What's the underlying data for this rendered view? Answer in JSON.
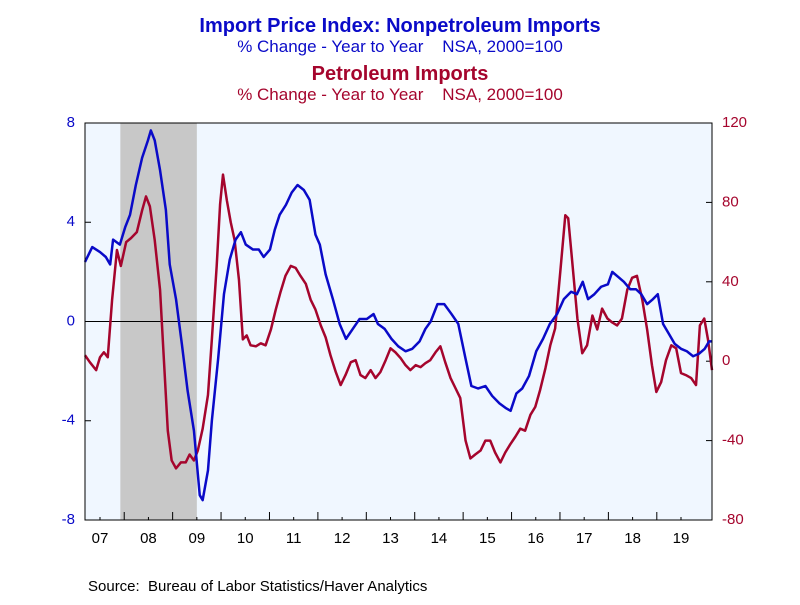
{
  "chart_data": {
    "type": "line",
    "source": "Source:  Bureau of Labor Statistics/Haver Analytics",
    "xlim": [
      2007.19,
      2020.14
    ],
    "xticks": [
      {
        "value": 2007.5,
        "label": "07"
      },
      {
        "value": 2008.5,
        "label": "08"
      },
      {
        "value": 2009.5,
        "label": "09"
      },
      {
        "value": 2010.5,
        "label": "10"
      },
      {
        "value": 2011.5,
        "label": "11"
      },
      {
        "value": 2012.5,
        "label": "12"
      },
      {
        "value": 2013.5,
        "label": "13"
      },
      {
        "value": 2014.5,
        "label": "14"
      },
      {
        "value": 2015.5,
        "label": "15"
      },
      {
        "value": 2016.5,
        "label": "16"
      },
      {
        "value": 2017.5,
        "label": "17"
      },
      {
        "value": 2018.5,
        "label": "18"
      },
      {
        "value": 2019.5,
        "label": "19"
      }
    ],
    "ylim": [
      -8,
      8
    ],
    "yticks": [
      -8,
      -4,
      0,
      4,
      8
    ],
    "y2lim": [
      -80,
      120
    ],
    "y2ticks": [
      -80,
      -40,
      0,
      40,
      80,
      120
    ],
    "recession": [
      2007.92,
      2009.5
    ],
    "series": [
      {
        "title": "Import Price Index: Nonpetroleum Imports",
        "subtitle": "% Change - Year to Year    NSA, 2000=100",
        "color": "#0a0ac8",
        "axis": "y",
        "x": [
          2007.19,
          2007.34,
          2007.5,
          2007.62,
          2007.71,
          2007.77,
          2007.91,
          2008.02,
          2008.12,
          2008.24,
          2008.37,
          2008.49,
          2008.55,
          2008.63,
          2008.74,
          2008.86,
          2008.94,
          2009.07,
          2009.19,
          2009.31,
          2009.44,
          2009.56,
          2009.62,
          2009.73,
          2009.81,
          2009.94,
          2010.06,
          2010.18,
          2010.3,
          2010.41,
          2010.51,
          2010.66,
          2010.78,
          2010.88,
          2011.01,
          2011.11,
          2011.21,
          2011.34,
          2011.46,
          2011.58,
          2011.71,
          2011.83,
          2011.95,
          2012.04,
          2012.16,
          2012.31,
          2012.45,
          2012.58,
          2012.72,
          2012.86,
          2013.01,
          2013.15,
          2013.24,
          2013.38,
          2013.52,
          2013.66,
          2013.81,
          2013.95,
          2014.1,
          2014.22,
          2014.33,
          2014.47,
          2014.61,
          2014.76,
          2014.9,
          2015.05,
          2015.17,
          2015.31,
          2015.46,
          2015.6,
          2015.75,
          2015.89,
          2015.98,
          2016.1,
          2016.22,
          2016.36,
          2016.51,
          2016.65,
          2016.79,
          2016.94,
          2017.08,
          2017.23,
          2017.35,
          2017.47,
          2017.58,
          2017.71,
          2017.85,
          2017.99,
          2018.08,
          2018.2,
          2018.32,
          2018.45,
          2018.57,
          2018.68,
          2018.8,
          2018.92,
          2019.02,
          2019.13,
          2019.25,
          2019.37,
          2019.5,
          2019.62,
          2019.75,
          2019.87,
          2019.99,
          2020.08,
          2020.14
        ],
        "values": [
          2.4,
          3.0,
          2.8,
          2.6,
          2.3,
          3.3,
          3.1,
          3.8,
          4.3,
          5.5,
          6.6,
          7.3,
          7.7,
          7.3,
          6.1,
          4.5,
          2.3,
          0.9,
          -0.9,
          -2.8,
          -4.4,
          -7.0,
          -7.2,
          -6.0,
          -4.0,
          -1.5,
          1.1,
          2.5,
          3.3,
          3.6,
          3.1,
          2.9,
          2.9,
          2.6,
          2.9,
          3.7,
          4.3,
          4.7,
          5.2,
          5.5,
          5.3,
          4.9,
          3.5,
          3.1,
          1.9,
          0.9,
          -0.1,
          -0.7,
          -0.3,
          0.1,
          0.1,
          0.3,
          -0.1,
          -0.3,
          -0.7,
          -1.0,
          -1.2,
          -1.1,
          -0.8,
          -0.3,
          0.0,
          0.7,
          0.7,
          0.3,
          -0.1,
          -1.5,
          -2.6,
          -2.7,
          -2.6,
          -3.0,
          -3.3,
          -3.5,
          -3.6,
          -2.9,
          -2.7,
          -2.2,
          -1.2,
          -0.7,
          -0.1,
          0.3,
          0.9,
          1.2,
          1.1,
          1.6,
          0.9,
          1.1,
          1.4,
          1.5,
          2.0,
          1.8,
          1.6,
          1.3,
          1.3,
          1.1,
          0.7,
          0.9,
          1.1,
          -0.1,
          -0.5,
          -0.9,
          -1.1,
          -1.2,
          -1.4,
          -1.3,
          -1.1,
          -0.8,
          -0.8
        ]
      },
      {
        "title": "Petroleum Imports",
        "subtitle": "% Change - Year to Year    NSA, 2000=100",
        "color": "#a5052d",
        "axis": "y2",
        "x": [
          2007.19,
          2007.29,
          2007.42,
          2007.5,
          2007.58,
          2007.66,
          2007.75,
          2007.85,
          2007.93,
          2008.04,
          2008.14,
          2008.26,
          2008.37,
          2008.45,
          2008.53,
          2008.63,
          2008.74,
          2008.82,
          2008.9,
          2008.98,
          2009.07,
          2009.17,
          2009.27,
          2009.35,
          2009.44,
          2009.52,
          2009.62,
          2009.73,
          2009.81,
          2009.91,
          2009.98,
          2010.04,
          2010.12,
          2010.2,
          2010.28,
          2010.37,
          2010.45,
          2010.53,
          2010.61,
          2010.72,
          2010.82,
          2010.92,
          2011.03,
          2011.13,
          2011.23,
          2011.33,
          2011.44,
          2011.54,
          2011.64,
          2011.75,
          2011.85,
          2011.95,
          2012.06,
          2012.16,
          2012.26,
          2012.37,
          2012.47,
          2012.57,
          2012.68,
          2012.78,
          2012.88,
          2012.98,
          2013.09,
          2013.19,
          2013.29,
          2013.4,
          2013.5,
          2013.6,
          2013.71,
          2013.81,
          2013.91,
          2014.02,
          2014.12,
          2014.22,
          2014.32,
          2014.43,
          2014.53,
          2014.63,
          2014.74,
          2014.84,
          2014.94,
          2015.05,
          2015.15,
          2015.25,
          2015.36,
          2015.46,
          2015.56,
          2015.66,
          2015.77,
          2015.87,
          2015.97,
          2016.08,
          2016.18,
          2016.28,
          2016.39,
          2016.49,
          2016.59,
          2016.7,
          2016.8,
          2016.9,
          2017.01,
          2017.11,
          2017.17,
          2017.25,
          2017.36,
          2017.46,
          2017.56,
          2017.67,
          2017.77,
          2017.87,
          2017.98,
          2018.08,
          2018.18,
          2018.28,
          2018.39,
          2018.49,
          2018.59,
          2018.7,
          2018.8,
          2018.9,
          2018.99,
          2019.09,
          2019.19,
          2019.3,
          2019.4,
          2019.5,
          2019.6,
          2019.71,
          2019.81,
          2019.89,
          2019.98,
          2020.06,
          2020.14
        ],
        "values": [
          3,
          -0.5,
          -4.5,
          2,
          4.5,
          2,
          31,
          56,
          48,
          60,
          62,
          65,
          76,
          83,
          78,
          61,
          36,
          0.5,
          -35,
          -50,
          -54,
          -51,
          -51,
          -47,
          -50,
          -45,
          -34,
          -17,
          11,
          48,
          79,
          94,
          81,
          70,
          61,
          41,
          11,
          13,
          8,
          7.5,
          9,
          8,
          16,
          26,
          35,
          43,
          48,
          47,
          43,
          39,
          31,
          26,
          18,
          12,
          3,
          -5.5,
          -12,
          -7,
          -0.5,
          0.5,
          -7,
          -8.5,
          -4.5,
          -8.5,
          -5.5,
          0.5,
          6.5,
          4.5,
          1.5,
          -2,
          -4.5,
          -2,
          -3,
          -1,
          0.5,
          4.5,
          7.5,
          -0.5,
          -8.5,
          -13.5,
          -18.5,
          -40,
          -49,
          -47,
          -45,
          -40,
          -40,
          -46,
          -51,
          -46,
          -42,
          -38,
          -34,
          -35,
          -27,
          -23,
          -14.5,
          -3.5,
          8,
          16.5,
          46,
          73.5,
          72,
          51,
          21.5,
          4,
          8,
          23,
          16,
          26.5,
          21.5,
          19.5,
          18,
          21.5,
          36,
          42,
          43,
          31,
          16,
          -2,
          -15.5,
          -10.5,
          0.5,
          8,
          6.5,
          -6,
          -7,
          -8.5,
          -12,
          18,
          21.5,
          10.5,
          -4.5
        ]
      }
    ]
  }
}
